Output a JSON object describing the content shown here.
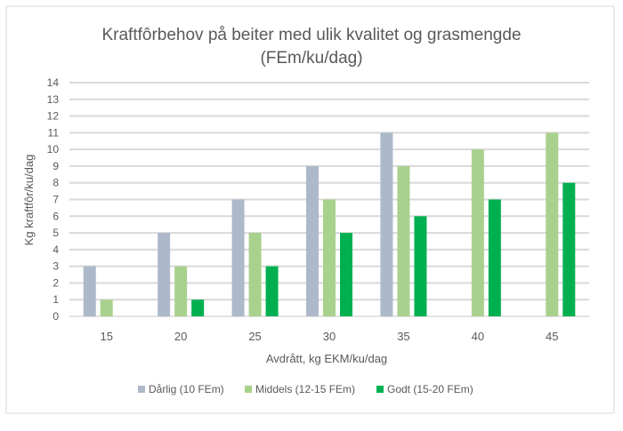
{
  "chart_data": {
    "type": "bar",
    "title_line1": "Kraftfôrbehov på beiter med ulik kvalitet og grasmengde",
    "title_line2": "(FEm/ku/dag)",
    "xlabel": "Avdrått, kg EKM/ku/dag",
    "ylabel": "Kg kraftfôr/ku/dag",
    "ylim": [
      0,
      14
    ],
    "yticks": [
      0,
      1,
      2,
      3,
      4,
      5,
      6,
      7,
      8,
      9,
      10,
      11,
      12,
      13,
      14
    ],
    "categories": [
      "15",
      "20",
      "25",
      "30",
      "35",
      "40",
      "45"
    ],
    "series": [
      {
        "name": "Dårlig (10 FEm)",
        "color": "#adb9ca",
        "values": [
          3,
          5,
          7,
          9,
          11,
          0,
          0
        ]
      },
      {
        "name": "Middels (12-15 FEm)",
        "color": "#a9d18e",
        "values": [
          1,
          3,
          5,
          7,
          9,
          10,
          11
        ]
      },
      {
        "name": "Godt (15-20 FEm)",
        "color": "#00b050",
        "values": [
          0,
          1,
          3,
          5,
          6,
          7,
          8
        ]
      }
    ],
    "grid": true,
    "legend": "bottom"
  }
}
